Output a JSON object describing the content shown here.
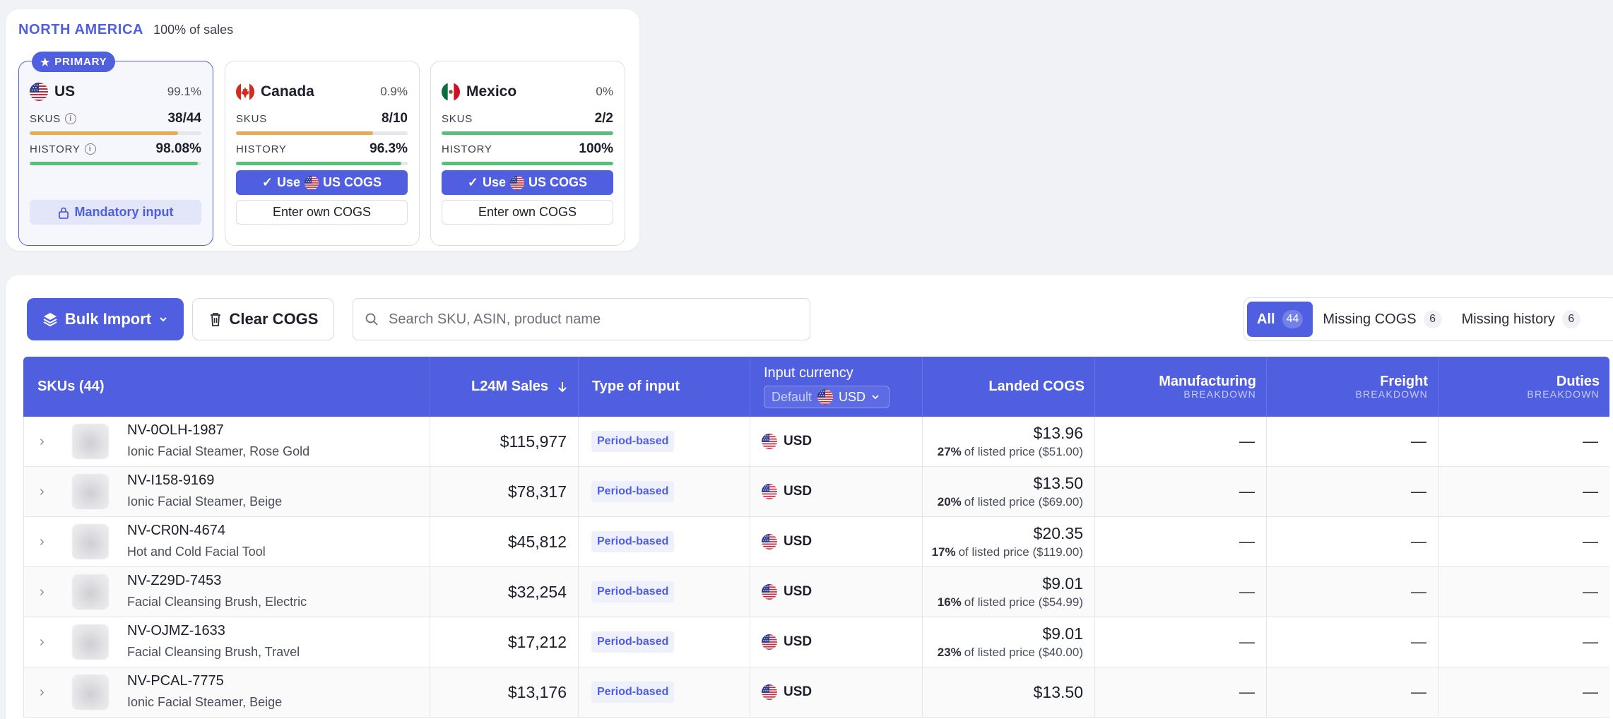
{
  "region": {
    "title": "NORTH AMERICA",
    "share": "100% of sales"
  },
  "markets": [
    {
      "name": "US",
      "pct": "99.1%",
      "badge": "PRIMARY",
      "flag": "us-flag",
      "skus_label": "SKUS",
      "skus_value": "38/44",
      "skus_fill": 0.864,
      "skus_color": "#e8ab4f",
      "history_label": "HISTORY",
      "history_value": "98.08%",
      "history_fill": 0.981,
      "history_color": "#5bbd7b",
      "action_label": "Mandatory input"
    },
    {
      "name": "Canada",
      "pct": "0.9%",
      "flag": "canada-flag",
      "skus_label": "SKUS",
      "skus_value": "8/10",
      "skus_fill": 0.8,
      "skus_color": "#e8ab4f",
      "history_label": "HISTORY",
      "history_value": "96.3%",
      "history_fill": 0.963,
      "history_color": "#5bbd7b",
      "use_prefix": "Use",
      "use_suffix": "US COGS",
      "own_label": "Enter own COGS"
    },
    {
      "name": "Mexico",
      "pct": "0%",
      "flag": "mexico-flag",
      "skus_label": "SKUS",
      "skus_value": "2/2",
      "skus_fill": 1.0,
      "skus_color": "#5bbd7b",
      "history_label": "HISTORY",
      "history_value": "100%",
      "history_fill": 1.0,
      "history_color": "#5bbd7b",
      "use_prefix": "Use",
      "use_suffix": "US COGS",
      "own_label": "Enter own COGS"
    }
  ],
  "toolbar": {
    "bulk_import": "Bulk Import",
    "clear_cogs": "Clear COGS",
    "search_placeholder": "Search SKU, ASIN, product name"
  },
  "filters": [
    {
      "label": "All",
      "count": "44",
      "active": true
    },
    {
      "label": "Missing COGS",
      "count": "6",
      "active": false
    },
    {
      "label": "Missing history",
      "count": "6",
      "active": false
    }
  ],
  "table": {
    "headers": {
      "skus": "SKUs (44)",
      "sales": "L24M Sales",
      "type": "Type of input",
      "currency": "Input currency",
      "currency_default": "Default",
      "currency_value": "USD",
      "landed": "Landed COGS",
      "manufacturing": "Manufacturing",
      "freight": "Freight",
      "duties": "Duties",
      "breakdown": "BREAKDOWN"
    },
    "rows": [
      {
        "sku": "NV-0OLH-1987",
        "name": "Ionic Facial Steamer, Rose Gold",
        "sales": "$115,977",
        "type": "Period-based",
        "currency": "USD",
        "cogs": "$13.96",
        "pct": "27%",
        "listed": "of listed price ($51.00)",
        "manufacturing": "—",
        "freight": "—",
        "duties": "—"
      },
      {
        "sku": "NV-I158-9169",
        "name": "Ionic Facial Steamer, Beige",
        "sales": "$78,317",
        "type": "Period-based",
        "currency": "USD",
        "cogs": "$13.50",
        "pct": "20%",
        "listed": "of listed price ($69.00)",
        "manufacturing": "—",
        "freight": "—",
        "duties": "—"
      },
      {
        "sku": "NV-CR0N-4674",
        "name": "Hot and Cold Facial Tool",
        "sales": "$45,812",
        "type": "Period-based",
        "currency": "USD",
        "cogs": "$20.35",
        "pct": "17%",
        "listed": "of listed price ($119.00)",
        "manufacturing": "—",
        "freight": "—",
        "duties": "—"
      },
      {
        "sku": "NV-Z29D-7453",
        "name": "Facial Cleansing Brush, Electric",
        "sales": "$32,254",
        "type": "Period-based",
        "currency": "USD",
        "cogs": "$9.01",
        "pct": "16%",
        "listed": "of listed price ($54.99)",
        "manufacturing": "—",
        "freight": "—",
        "duties": "—"
      },
      {
        "sku": "NV-OJMZ-1633",
        "name": "Facial Cleansing Brush, Travel",
        "sales": "$17,212",
        "type": "Period-based",
        "currency": "USD",
        "cogs": "$9.01",
        "pct": "23%",
        "listed": "of listed price ($40.00)",
        "manufacturing": "—",
        "freight": "—",
        "duties": "—"
      },
      {
        "sku": "NV-PCAL-7775",
        "name": "Ionic Facial Steamer, Beige",
        "sales": "$13,176",
        "type": "Period-based",
        "currency": "USD",
        "cogs": "$13.50",
        "pct": "",
        "listed": "",
        "manufacturing": "—",
        "freight": "—",
        "duties": "—"
      }
    ]
  },
  "colors": {
    "accent": "#4f5fe0",
    "amber": "#e8ab4f",
    "green": "#5bbd7b"
  }
}
